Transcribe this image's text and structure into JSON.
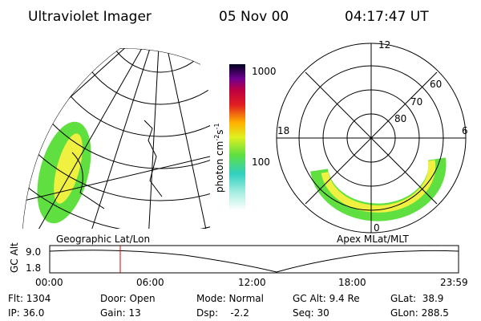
{
  "header": {
    "instrument": "Ultraviolet Imager",
    "date": "05 Nov 00",
    "time": "04:17:47 UT"
  },
  "colorbar": {
    "label": "photon cm",
    "label_exp1": "-2",
    "label_unit2": "s",
    "label_exp2": "-1",
    "ticks": [
      "1000",
      "100"
    ]
  },
  "polar": {
    "hours": [
      "12",
      "18",
      "6",
      "0"
    ],
    "lat_labels": [
      "60",
      "70",
      "80"
    ]
  },
  "map_labels": {
    "left": "Geographic Lat/Lon",
    "right": "Apex MLat/MLT"
  },
  "timeline": {
    "ylabel": "GC Alt",
    "yticks": [
      "9.0",
      "1.8"
    ],
    "xticks": [
      "00:00",
      "06:00",
      "12:00",
      "18:00",
      "23:59"
    ]
  },
  "status": [
    [
      "Flt: 1304",
      "Door: Open",
      "Mode: Normal",
      "GC Alt: 9.4 Re",
      "GLat:  38.9"
    ],
    [
      "IP: 36.0",
      "Gain: 13",
      "Dsp:    -2.2",
      "Seq: 30",
      "GLon: 288.5"
    ]
  ]
}
